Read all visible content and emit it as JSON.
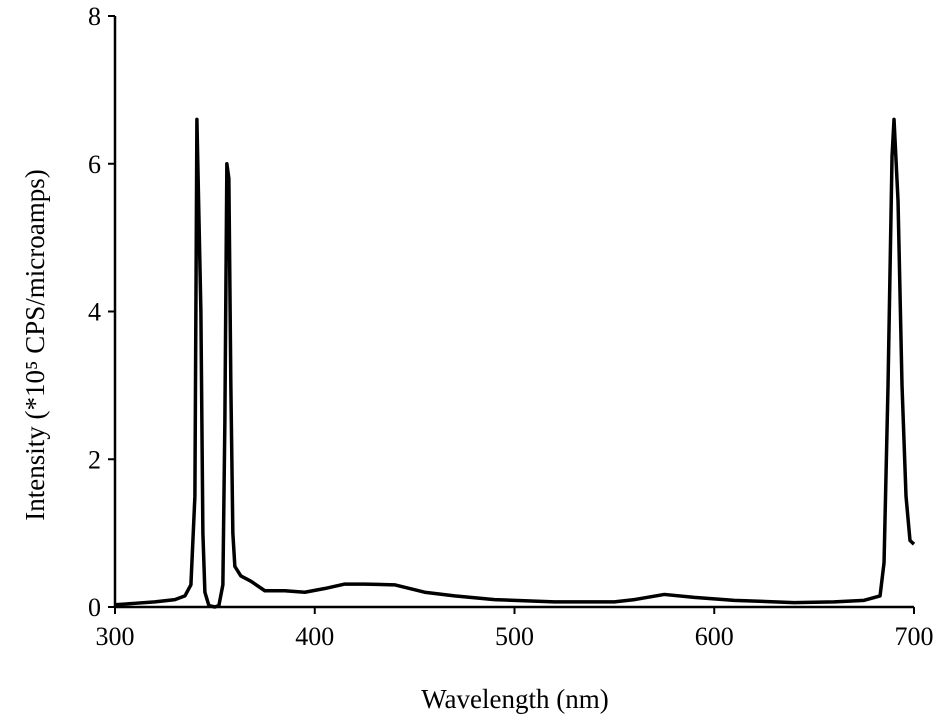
{
  "chart_data": {
    "type": "line",
    "x_label": "Wavelength (nm)",
    "y_label": "Intensity (*10⁵ CPS/microamps)",
    "color": "#000000",
    "x": [
      300,
      310,
      320,
      330,
      335,
      338,
      340,
      341,
      343,
      344,
      345,
      347,
      350,
      352,
      354,
      355,
      356,
      357,
      358,
      359,
      360,
      363,
      368,
      375,
      385,
      395,
      405,
      415,
      425,
      440,
      455,
      470,
      490,
      520,
      550,
      560,
      575,
      590,
      610,
      640,
      660,
      675,
      683,
      685,
      687,
      689,
      690,
      692,
      694,
      696,
      698,
      700
    ],
    "values": [
      0.03,
      0.05,
      0.07,
      0.1,
      0.15,
      0.3,
      1.5,
      6.6,
      4.0,
      1.0,
      0.2,
      0.02,
      0.0,
      0.02,
      0.3,
      2.5,
      6.0,
      5.8,
      3.0,
      1.0,
      0.55,
      0.42,
      0.35,
      0.22,
      0.22,
      0.2,
      0.25,
      0.31,
      0.31,
      0.3,
      0.2,
      0.15,
      0.1,
      0.07,
      0.07,
      0.1,
      0.17,
      0.13,
      0.09,
      0.06,
      0.07,
      0.09,
      0.15,
      0.6,
      3.0,
      6.1,
      6.6,
      5.5,
      3.0,
      1.5,
      0.9,
      0.85
    ],
    "xlim": [
      300,
      700
    ],
    "xticks": [
      300,
      400,
      500,
      600,
      700
    ],
    "ylim": [
      0,
      8
    ],
    "yticks": [
      0,
      2,
      4,
      6,
      8
    ]
  }
}
